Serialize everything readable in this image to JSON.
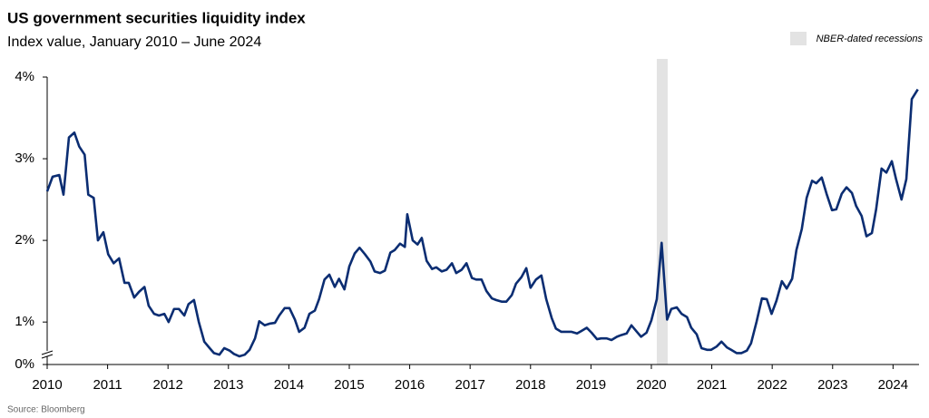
{
  "chart_data": {
    "type": "line",
    "title": "US government securities liquidity index",
    "subtitle": "Index value, January 2010 – June 2024",
    "source": "Source: Bloomberg",
    "legend": {
      "recession_label": "NBER-dated recessions",
      "corner": "top-right"
    },
    "recessions": [
      [
        2020.09,
        2020.27
      ]
    ],
    "recession_color": "#e3e3e3",
    "xlim": [
      2010,
      2024.43
    ],
    "xticks": [
      2010,
      2011,
      2012,
      2013,
      2014,
      2015,
      2016,
      2017,
      2018,
      2019,
      2020,
      2021,
      2022,
      2023,
      2024
    ],
    "ylim": [
      0.48,
      4
    ],
    "axis_break": true,
    "yticks": [
      {
        "value": 0,
        "label": "0%"
      },
      {
        "value": 1,
        "label": "1%"
      },
      {
        "value": 2,
        "label": "2%"
      },
      {
        "value": 3,
        "label": "3%"
      },
      {
        "value": 4,
        "label": "4%"
      }
    ],
    "grid": false,
    "series": [
      {
        "name": "US government securities liquidity index",
        "color": "#0b2d72",
        "x": [
          2010.0,
          2010.09,
          2010.2,
          2010.27,
          2010.36,
          2010.45,
          2010.53,
          2010.62,
          2010.68,
          2010.77,
          2010.84,
          2010.93,
          2011.01,
          2011.1,
          2011.19,
          2011.28,
          2011.35,
          2011.44,
          2011.52,
          2011.61,
          2011.68,
          2011.77,
          2011.85,
          2011.94,
          2012.01,
          2012.1,
          2012.18,
          2012.27,
          2012.34,
          2012.43,
          2012.51,
          2012.6,
          2012.69,
          2012.76,
          2012.85,
          2012.93,
          2013.02,
          2013.09,
          2013.18,
          2013.27,
          2013.35,
          2013.44,
          2013.51,
          2013.6,
          2013.68,
          2013.77,
          2013.84,
          2013.93,
          2014.01,
          2014.1,
          2014.17,
          2014.26,
          2014.34,
          2014.43,
          2014.5,
          2014.59,
          2014.67,
          2014.76,
          2014.83,
          2014.92,
          2015.0,
          2015.09,
          2015.17,
          2015.26,
          2015.35,
          2015.42,
          2015.51,
          2015.59,
          2015.68,
          2015.75,
          2015.84,
          2015.92,
          2015.96,
          2016.05,
          2016.13,
          2016.2,
          2016.28,
          2016.37,
          2016.44,
          2016.53,
          2016.61,
          2016.7,
          2016.77,
          2016.86,
          2016.94,
          2017.03,
          2017.1,
          2017.19,
          2017.27,
          2017.36,
          2017.43,
          2017.52,
          2017.6,
          2017.69,
          2017.76,
          2017.85,
          2017.93,
          2018.0,
          2018.09,
          2018.18,
          2018.26,
          2018.35,
          2018.42,
          2018.51,
          2018.59,
          2018.68,
          2018.77,
          2018.84,
          2018.93,
          2019.01,
          2019.1,
          2019.17,
          2019.26,
          2019.34,
          2019.43,
          2019.5,
          2019.59,
          2019.67,
          2019.76,
          2019.83,
          2019.92,
          2020.0,
          2020.09,
          2020.17,
          2020.26,
          2020.33,
          2020.42,
          2020.5,
          2020.59,
          2020.66,
          2020.75,
          2020.83,
          2020.92,
          2020.99,
          2021.08,
          2021.16,
          2021.25,
          2021.32,
          2021.41,
          2021.49,
          2021.58,
          2021.65,
          2021.74,
          2021.83,
          2021.91,
          2021.99,
          2022.07,
          2022.16,
          2022.24,
          2022.33,
          2022.4,
          2022.49,
          2022.57,
          2022.66,
          2022.73,
          2022.82,
          2022.9,
          2022.99,
          2023.06,
          2023.15,
          2023.23,
          2023.32,
          2023.39,
          2023.48,
          2023.56,
          2023.65,
          2023.72,
          2023.81,
          2023.89,
          2023.98,
          2024.05,
          2024.14,
          2024.22,
          2024.31,
          2024.41
        ],
        "values": [
          2.6,
          2.78,
          2.8,
          2.56,
          3.26,
          3.32,
          3.15,
          3.05,
          2.56,
          2.52,
          2.0,
          2.1,
          1.83,
          1.72,
          1.78,
          1.48,
          1.48,
          1.3,
          1.37,
          1.43,
          1.2,
          1.1,
          1.08,
          1.1,
          1.0,
          1.16,
          1.16,
          1.08,
          1.22,
          1.27,
          1.0,
          0.76,
          0.68,
          0.62,
          0.6,
          0.68,
          0.65,
          0.61,
          0.58,
          0.6,
          0.66,
          0.8,
          1.01,
          0.96,
          0.98,
          0.99,
          1.08,
          1.17,
          1.17,
          1.03,
          0.88,
          0.93,
          1.1,
          1.14,
          1.28,
          1.52,
          1.58,
          1.43,
          1.53,
          1.4,
          1.68,
          1.84,
          1.91,
          1.83,
          1.74,
          1.62,
          1.6,
          1.63,
          1.85,
          1.88,
          1.96,
          1.92,
          2.32,
          2.0,
          1.95,
          2.03,
          1.75,
          1.65,
          1.67,
          1.62,
          1.64,
          1.72,
          1.6,
          1.64,
          1.72,
          1.54,
          1.52,
          1.52,
          1.38,
          1.29,
          1.27,
          1.25,
          1.25,
          1.33,
          1.47,
          1.55,
          1.66,
          1.42,
          1.52,
          1.57,
          1.28,
          1.05,
          0.92,
          0.88,
          0.88,
          0.88,
          0.86,
          0.89,
          0.93,
          0.87,
          0.79,
          0.8,
          0.8,
          0.78,
          0.82,
          0.84,
          0.86,
          0.96,
          0.88,
          0.82,
          0.87,
          1.02,
          1.28,
          1.97,
          1.03,
          1.16,
          1.18,
          1.1,
          1.06,
          0.93,
          0.85,
          0.68,
          0.66,
          0.66,
          0.7,
          0.76,
          0.69,
          0.66,
          0.62,
          0.62,
          0.65,
          0.74,
          1.0,
          1.29,
          1.28,
          1.1,
          1.26,
          1.5,
          1.41,
          1.53,
          1.88,
          2.14,
          2.52,
          2.73,
          2.7,
          2.77,
          2.57,
          2.37,
          2.38,
          2.57,
          2.65,
          2.58,
          2.42,
          2.3,
          2.05,
          2.09,
          2.38,
          2.88,
          2.83,
          2.97,
          2.75,
          2.5,
          2.75,
          3.73,
          3.85
        ]
      }
    ]
  }
}
